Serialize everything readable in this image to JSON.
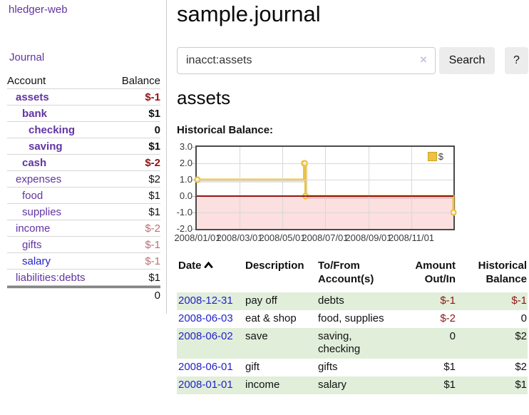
{
  "colors": {
    "purple": "#6134a3",
    "blue": "#2222cc",
    "negative_strong": "#8f1414",
    "negative_soft": "#bd6e74",
    "row_stripe": "#e1eeda",
    "series_gold": "#edc240",
    "negative_zone_pink": "#fcdfdf",
    "zero_line_red": "#951515",
    "gridline": "#d8d8d8",
    "plot_border": "#4a4a4a",
    "button_bg": "#ececec"
  },
  "sidebar": {
    "app_title": "hledger-web",
    "nav_journal": "Journal",
    "accounts": {
      "header": {
        "account": "Account",
        "balance": "Balance"
      },
      "rows": [
        {
          "account": "assets",
          "balance": "$-1",
          "level": 1,
          "bold": true,
          "neg": "strong"
        },
        {
          "account": "bank",
          "balance": "$1",
          "level": 2,
          "bold": true,
          "neg": null
        },
        {
          "account": "checking",
          "balance": "0",
          "level": 3,
          "bold": true,
          "neg": null
        },
        {
          "account": "saving",
          "balance": "$1",
          "level": 3,
          "bold": true,
          "neg": null
        },
        {
          "account": "cash",
          "balance": "$-2",
          "level": 2,
          "bold": true,
          "neg": "strong"
        },
        {
          "account": "expenses",
          "balance": "$2",
          "level": 1,
          "bold": false,
          "neg": null
        },
        {
          "account": "food",
          "balance": "$1",
          "level": 2,
          "bold": false,
          "neg": null
        },
        {
          "account": "supplies",
          "balance": "$1",
          "level": 2,
          "bold": false,
          "neg": null
        },
        {
          "account": "income",
          "balance": "$-2",
          "level": 1,
          "bold": false,
          "neg": "soft"
        },
        {
          "account": "gifts",
          "balance": "$-1",
          "level": 2,
          "bold": false,
          "neg": "soft"
        },
        {
          "account": "salary",
          "balance": "$-1",
          "level": 2,
          "bold": false,
          "neg": "soft",
          "link_color": "blue"
        },
        {
          "account": "liabilities:debts",
          "balance": "$1",
          "level": 1,
          "bold": false,
          "neg": null
        }
      ],
      "total": "0"
    }
  },
  "header": {
    "title": "sample.journal"
  },
  "search": {
    "value": "inacct:assets",
    "clear_icon": "×",
    "search_button": "Search",
    "help_button": "?"
  },
  "account_page": {
    "heading": "assets",
    "chart_title": "Historical Balance:"
  },
  "chart_data": {
    "type": "line",
    "step": true,
    "title": "Historical Balance",
    "series": [
      {
        "name": "$",
        "color": "#edc240",
        "points": [
          [
            "2008-01-01",
            1
          ],
          [
            "2008-06-01",
            2
          ],
          [
            "2008-06-02",
            2
          ],
          [
            "2008-06-03",
            0
          ],
          [
            "2008-12-31",
            -1
          ]
        ]
      }
    ],
    "ylim": [
      -2,
      3
    ],
    "y_ticks": [
      "3.0",
      "2.0",
      "1.0",
      "0.0",
      "-1.0",
      "-2.0"
    ],
    "x_ticks": [
      "2008/01/01",
      "2008/03/01",
      "2008/05/01",
      "2008/07/01",
      "2008/09/01",
      "2008/11/01"
    ],
    "x_range_days": 366,
    "grid": true,
    "legend_position": "top-right",
    "negative_region_shaded": true
  },
  "register": {
    "headers": {
      "date": "Date",
      "description": "Description",
      "accounts": "To/From Account(s)",
      "amount": "Amount Out/In",
      "balance": "Historical Balance"
    },
    "sort": {
      "column": "date",
      "direction": "ascending"
    },
    "rows": [
      {
        "date": "2008-12-31",
        "description": "pay off",
        "accounts": "debts",
        "amount": "$-1",
        "balance": "$-1",
        "amount_negative": true,
        "balance_negative": true
      },
      {
        "date": "2008-06-03",
        "description": "eat & shop",
        "accounts": "food, supplies",
        "amount": "$-2",
        "balance": "0",
        "amount_negative": true,
        "balance_negative": false
      },
      {
        "date": "2008-06-02",
        "description": "save",
        "accounts": "saving, checking",
        "amount": "0",
        "balance": "$2",
        "amount_negative": false,
        "balance_negative": false
      },
      {
        "date": "2008-06-01",
        "description": "gift",
        "accounts": "gifts",
        "amount": "$1",
        "balance": "$2",
        "amount_negative": false,
        "balance_negative": false
      },
      {
        "date": "2008-01-01",
        "description": "income",
        "accounts": "salary",
        "amount": "$1",
        "balance": "$1",
        "amount_negative": false,
        "balance_negative": false
      }
    ]
  }
}
